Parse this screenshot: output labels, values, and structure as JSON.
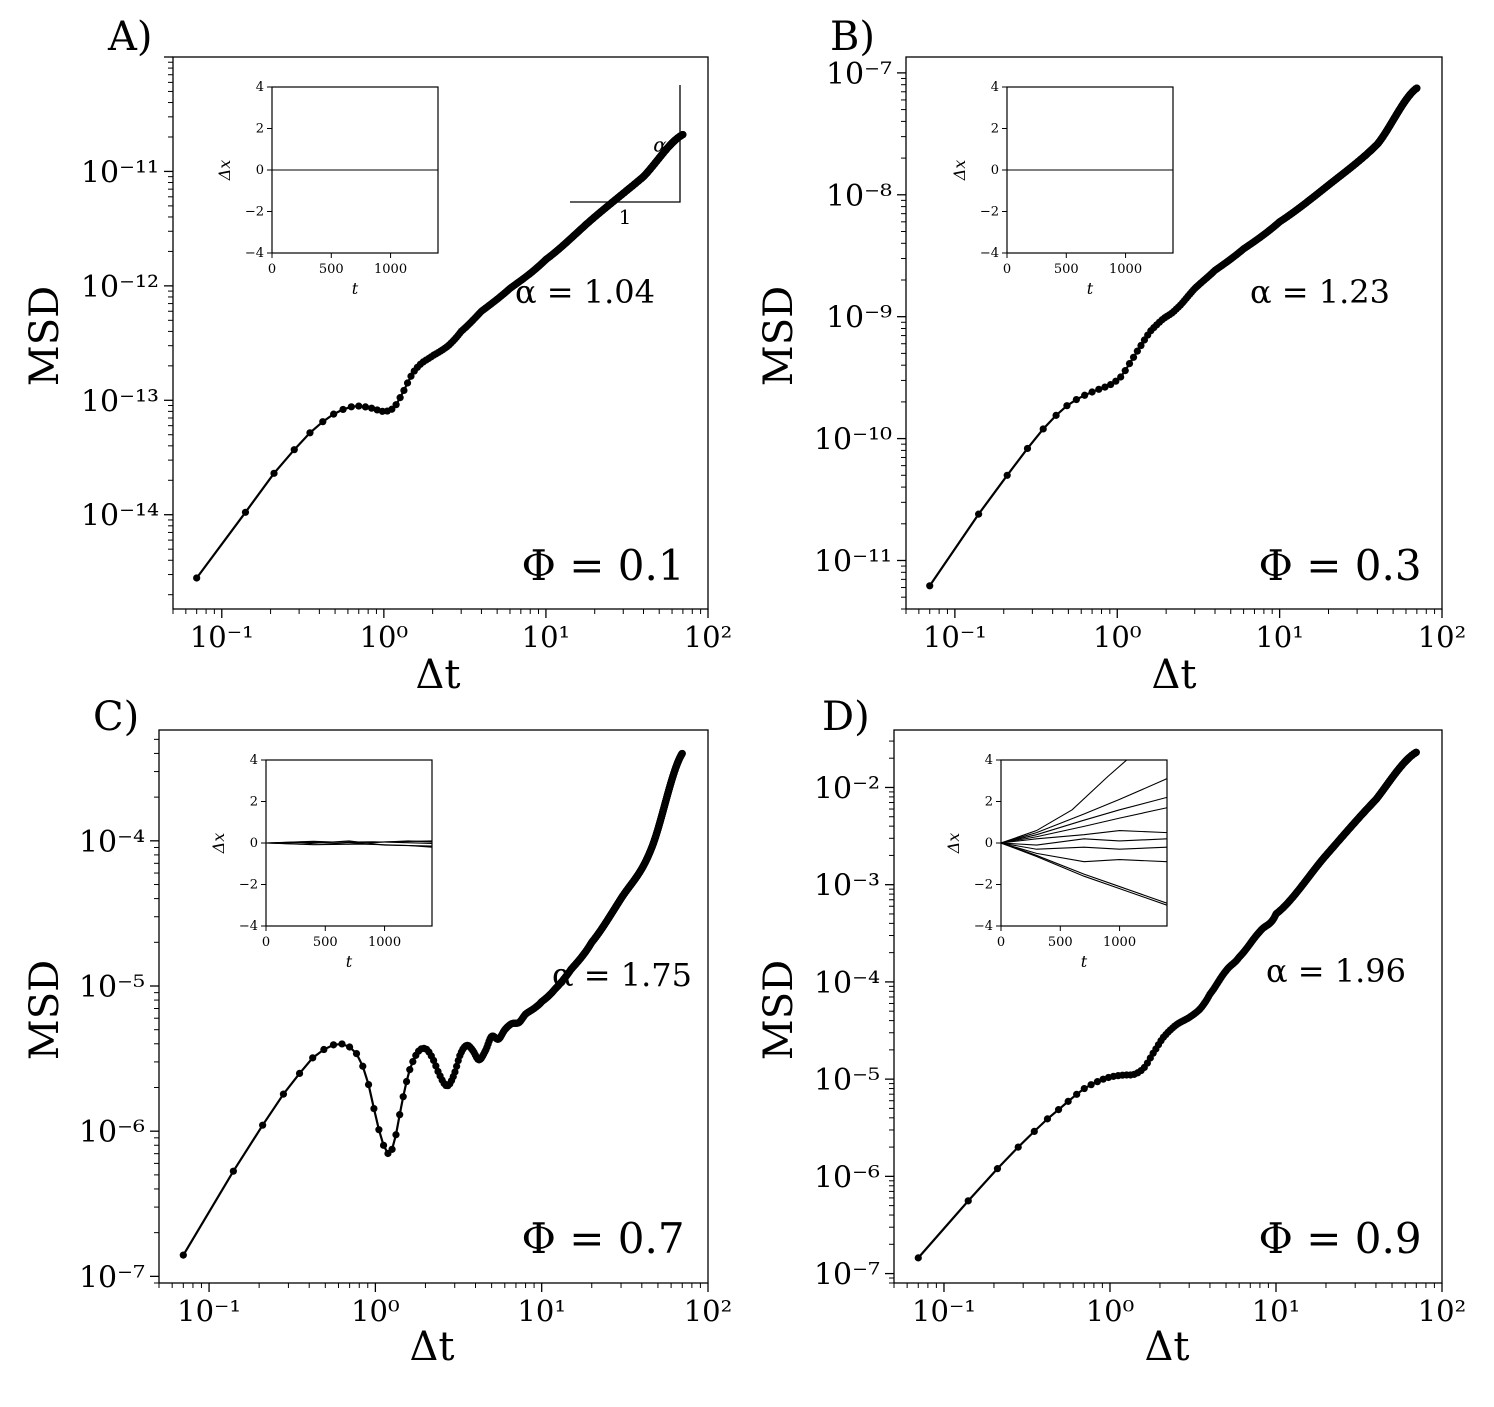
{
  "chart_data": [
    {
      "type": "line",
      "panel_label": "A)",
      "xlabel": "Δt",
      "ylabel": "MSD",
      "x_scale": "log",
      "y_scale": "log",
      "xlim": [
        0.05,
        100
      ],
      "ylim": [
        1.5e-15,
        1e-10
      ],
      "x_ticks": [
        {
          "v": 0.1,
          "l": "10⁻¹"
        },
        {
          "v": 1,
          "l": "10⁰"
        },
        {
          "v": 10,
          "l": "10¹"
        },
        {
          "v": 100,
          "l": "10²"
        }
      ],
      "y_ticks": [
        {
          "v": 1e-14,
          "l": "10⁻¹⁴"
        },
        {
          "v": 1e-13,
          "l": "10⁻¹³"
        },
        {
          "v": 1e-12,
          "l": "10⁻¹²"
        },
        {
          "v": 1e-11,
          "l": "10⁻¹¹"
        }
      ],
      "alpha_text": "α = 1.04",
      "phi_text": "Φ = 0.1",
      "slope_triangle": {
        "run_label": "1",
        "rise_label": "α"
      },
      "anchors": [
        [
          0.07,
          2.8e-15
        ],
        [
          0.14,
          1.05e-14
        ],
        [
          0.21,
          2.3e-14
        ],
        [
          0.28,
          3.7e-14
        ],
        [
          0.35,
          5.2e-14
        ],
        [
          0.42,
          6.5e-14
        ],
        [
          0.5,
          7.7e-14
        ],
        [
          0.6,
          8.6e-14
        ],
        [
          0.7,
          8.9e-14
        ],
        [
          0.85,
          8.5e-14
        ],
        [
          1.0,
          8e-14
        ],
        [
          1.15,
          8.6e-14
        ],
        [
          1.3,
          1.15e-13
        ],
        [
          1.5,
          1.7e-13
        ],
        [
          1.7,
          2.1e-13
        ],
        [
          2.0,
          2.45e-13
        ],
        [
          2.5,
          3e-13
        ],
        [
          3.0,
          4e-13
        ],
        [
          4.0,
          6e-13
        ],
        [
          6.0,
          9.5e-13
        ],
        [
          10,
          1.7e-12
        ],
        [
          20,
          4e-12
        ],
        [
          40,
          9e-12
        ],
        [
          70,
          2.1e-11
        ]
      ],
      "inset": {
        "xlabel": "t",
        "ylabel": "Δx",
        "xlim": [
          0,
          1400
        ],
        "ylim": [
          -4,
          4
        ],
        "x_ticks": [
          0,
          500,
          1000
        ],
        "y_ticks": [
          -4,
          -2,
          0,
          2,
          4
        ],
        "lines": [
          [
            [
              0,
              0
            ],
            [
              1400,
              0
            ]
          ]
        ]
      }
    },
    {
      "type": "line",
      "panel_label": "B)",
      "xlabel": "Δt",
      "ylabel": "MSD",
      "x_scale": "log",
      "y_scale": "log",
      "xlim": [
        0.05,
        100
      ],
      "ylim": [
        4e-12,
        1.35e-07
      ],
      "x_ticks": [
        {
          "v": 0.1,
          "l": "10⁻¹"
        },
        {
          "v": 1,
          "l": "10⁰"
        },
        {
          "v": 10,
          "l": "10¹"
        },
        {
          "v": 100,
          "l": "10²"
        }
      ],
      "y_ticks": [
        {
          "v": 1e-11,
          "l": "10⁻¹¹"
        },
        {
          "v": 1e-10,
          "l": "10⁻¹⁰"
        },
        {
          "v": 1e-09,
          "l": "10⁻⁹"
        },
        {
          "v": 1e-08,
          "l": "10⁻⁸"
        },
        {
          "v": 1e-07,
          "l": "10⁻⁷"
        }
      ],
      "alpha_text": "α = 1.23",
      "phi_text": "Φ = 0.3",
      "anchors": [
        [
          0.07,
          6.2e-12
        ],
        [
          0.14,
          2.4e-11
        ],
        [
          0.21,
          5e-11
        ],
        [
          0.28,
          8.3e-11
        ],
        [
          0.35,
          1.2e-10
        ],
        [
          0.42,
          1.55e-10
        ],
        [
          0.5,
          1.9e-10
        ],
        [
          0.6,
          2.2e-10
        ],
        [
          0.75,
          2.5e-10
        ],
        [
          0.9,
          2.75e-10
        ],
        [
          1.05,
          3.2e-10
        ],
        [
          1.2,
          4.2e-10
        ],
        [
          1.4,
          5.8e-10
        ],
        [
          1.6,
          7.6e-10
        ],
        [
          1.9,
          9.5e-10
        ],
        [
          2.3,
          1.15e-09
        ],
        [
          3.0,
          1.7e-09
        ],
        [
          4.0,
          2.4e-09
        ],
        [
          6.0,
          3.6e-09
        ],
        [
          10,
          6e-09
        ],
        [
          20,
          1.2e-08
        ],
        [
          40,
          2.6e-08
        ],
        [
          70,
          7.5e-08
        ]
      ],
      "inset": {
        "xlabel": "t",
        "ylabel": "Δx",
        "xlim": [
          0,
          1400
        ],
        "ylim": [
          -4,
          4
        ],
        "x_ticks": [
          0,
          500,
          1000
        ],
        "y_ticks": [
          -4,
          -2,
          0,
          2,
          4
        ],
        "lines": [
          [
            [
              0,
              0
            ],
            [
              1400,
              0
            ]
          ]
        ]
      }
    },
    {
      "type": "line",
      "panel_label": "C)",
      "xlabel": "Δt",
      "ylabel": "MSD",
      "x_scale": "log",
      "y_scale": "log",
      "xlim": [
        0.05,
        100
      ],
      "ylim": [
        9e-08,
        0.00058
      ],
      "x_ticks": [
        {
          "v": 0.1,
          "l": "10⁻¹"
        },
        {
          "v": 1,
          "l": "10⁰"
        },
        {
          "v": 10,
          "l": "10¹"
        },
        {
          "v": 100,
          "l": "10²"
        }
      ],
      "y_ticks": [
        {
          "v": 1e-07,
          "l": "10⁻⁷"
        },
        {
          "v": 1e-06,
          "l": "10⁻⁶"
        },
        {
          "v": 1e-05,
          "l": "10⁻⁵"
        },
        {
          "v": 0.0001,
          "l": "10⁻⁴"
        }
      ],
      "alpha_text": "α = 1.75",
      "phi_text": "Φ = 0.7",
      "anchors": [
        [
          0.07,
          1.4e-07
        ],
        [
          0.14,
          5.3e-07
        ],
        [
          0.21,
          1.1e-06
        ],
        [
          0.28,
          1.8e-06
        ],
        [
          0.35,
          2.5e-06
        ],
        [
          0.42,
          3.2e-06
        ],
        [
          0.5,
          3.7e-06
        ],
        [
          0.6,
          4e-06
        ],
        [
          0.7,
          3.8e-06
        ],
        [
          0.8,
          3.2e-06
        ],
        [
          0.9,
          2.2e-06
        ],
        [
          1.0,
          1.3e-06
        ],
        [
          1.1,
          8.5e-07
        ],
        [
          1.2,
          7e-07
        ],
        [
          1.3,
          8.5e-07
        ],
        [
          1.45,
          1.6e-06
        ],
        [
          1.6,
          2.6e-06
        ],
        [
          1.8,
          3.5e-06
        ],
        [
          2.0,
          3.7e-06
        ],
        [
          2.2,
          3.2e-06
        ],
        [
          2.45,
          2.4e-06
        ],
        [
          2.7,
          2.05e-06
        ],
        [
          2.95,
          2.4e-06
        ],
        [
          3.25,
          3.4e-06
        ],
        [
          3.55,
          3.9e-06
        ],
        [
          3.85,
          3.6e-06
        ],
        [
          4.2,
          3.1e-06
        ],
        [
          4.6,
          3.6e-06
        ],
        [
          5.0,
          4.5e-06
        ],
        [
          5.5,
          4.3e-06
        ],
        [
          6.0,
          5e-06
        ],
        [
          6.6,
          5.5e-06
        ],
        [
          7.3,
          5.6e-06
        ],
        [
          8.0,
          6.4e-06
        ],
        [
          9.0,
          7e-06
        ],
        [
          10,
          7.8e-06
        ],
        [
          12,
          9.5e-06
        ],
        [
          15,
          1.3e-05
        ],
        [
          20,
          2e-05
        ],
        [
          30,
          4e-05
        ],
        [
          45,
          8.5e-05
        ],
        [
          70,
          0.0004
        ]
      ],
      "inset": {
        "xlabel": "t",
        "ylabel": "Δx",
        "xlim": [
          0,
          1400
        ],
        "ylim": [
          -4,
          4
        ],
        "x_ticks": [
          0,
          500,
          1000
        ],
        "y_ticks": [
          -4,
          -2,
          0,
          2,
          4
        ],
        "lines": [
          [
            [
              0,
              0
            ],
            [
              300,
              0.05
            ],
            [
              700,
              -0.05
            ],
            [
              1000,
              0.05
            ],
            [
              1400,
              0.1
            ]
          ],
          [
            [
              0,
              0
            ],
            [
              300,
              -0.05
            ],
            [
              700,
              0.1
            ],
            [
              1000,
              -0.1
            ],
            [
              1400,
              -0.15
            ]
          ],
          [
            [
              0,
              0
            ],
            [
              400,
              0.08
            ],
            [
              800,
              0.0
            ],
            [
              1200,
              0.1
            ],
            [
              1400,
              0.05
            ]
          ],
          [
            [
              0,
              0
            ],
            [
              400,
              -0.08
            ],
            [
              800,
              -0.05
            ],
            [
              1200,
              -0.12
            ],
            [
              1400,
              -0.2
            ]
          ],
          [
            [
              0,
              0
            ],
            [
              500,
              0.03
            ],
            [
              900,
              0.06
            ],
            [
              1400,
              -0.02
            ]
          ]
        ]
      }
    },
    {
      "type": "line",
      "panel_label": "D)",
      "xlabel": "Δt",
      "ylabel": "MSD",
      "x_scale": "log",
      "y_scale": "log",
      "xlim": [
        0.05,
        100
      ],
      "ylim": [
        8e-08,
        0.039
      ],
      "x_ticks": [
        {
          "v": 0.1,
          "l": "10⁻¹"
        },
        {
          "v": 1,
          "l": "10⁰"
        },
        {
          "v": 10,
          "l": "10¹"
        },
        {
          "v": 100,
          "l": "10²"
        }
      ],
      "y_ticks": [
        {
          "v": 1e-07,
          "l": "10⁻⁷"
        },
        {
          "v": 1e-06,
          "l": "10⁻⁶"
        },
        {
          "v": 1e-05,
          "l": "10⁻⁵"
        },
        {
          "v": 0.0001,
          "l": "10⁻⁴"
        },
        {
          "v": 0.001,
          "l": "10⁻³"
        },
        {
          "v": 0.01,
          "l": "10⁻²"
        }
      ],
      "alpha_text": "α = 1.96",
      "phi_text": "Φ = 0.9",
      "anchors": [
        [
          0.07,
          1.45e-07
        ],
        [
          0.14,
          5.6e-07
        ],
        [
          0.21,
          1.2e-06
        ],
        [
          0.28,
          2e-06
        ],
        [
          0.35,
          2.9e-06
        ],
        [
          0.42,
          3.9e-06
        ],
        [
          0.5,
          5e-06
        ],
        [
          0.6,
          6.5e-06
        ],
        [
          0.7,
          8e-06
        ],
        [
          0.85,
          9.5e-06
        ],
        [
          1.0,
          1.05e-05
        ],
        [
          1.2,
          1.1e-05
        ],
        [
          1.4,
          1.12e-05
        ],
        [
          1.6,
          1.3e-05
        ],
        [
          1.8,
          1.8e-05
        ],
        [
          2.1,
          2.7e-05
        ],
        [
          2.5,
          3.6e-05
        ],
        [
          3.0,
          4.3e-05
        ],
        [
          3.5,
          5.3e-05
        ],
        [
          4.0,
          7.5e-05
        ],
        [
          5.0,
          0.00013
        ],
        [
          6.0,
          0.00018
        ],
        [
          8.0,
          0.00033
        ],
        [
          10,
          0.0005
        ],
        [
          20,
          0.002
        ],
        [
          40,
          0.0075
        ],
        [
          70,
          0.023
        ]
      ],
      "inset": {
        "xlabel": "t",
        "ylabel": "Δx",
        "xlim": [
          0,
          1400
        ],
        "ylim": [
          -4,
          4
        ],
        "x_ticks": [
          0,
          500,
          1000
        ],
        "y_ticks": [
          -4,
          -2,
          0,
          2,
          4
        ],
        "lines": [
          [
            [
              0,
              0
            ],
            [
              300,
              0.6
            ],
            [
              600,
              1.6
            ],
            [
              900,
              3.2
            ],
            [
              1100,
              4.2
            ]
          ],
          [
            [
              0,
              0
            ],
            [
              300,
              0.5
            ],
            [
              700,
              1.4
            ],
            [
              1000,
              2.1
            ],
            [
              1400,
              3.1
            ]
          ],
          [
            [
              0,
              0
            ],
            [
              300,
              0.4
            ],
            [
              700,
              1.1
            ],
            [
              1000,
              1.6
            ],
            [
              1400,
              2.2
            ]
          ],
          [
            [
              0,
              0
            ],
            [
              300,
              0.3
            ],
            [
              700,
              0.8
            ],
            [
              1000,
              1.2
            ],
            [
              1400,
              1.7
            ]
          ],
          [
            [
              0,
              0
            ],
            [
              300,
              0.2
            ],
            [
              700,
              0.4
            ],
            [
              1000,
              0.6
            ],
            [
              1400,
              0.5
            ]
          ],
          [
            [
              0,
              0
            ],
            [
              300,
              -0.1
            ],
            [
              700,
              0.2
            ],
            [
              1000,
              0.1
            ],
            [
              1400,
              0.2
            ]
          ],
          [
            [
              0,
              0
            ],
            [
              300,
              -0.3
            ],
            [
              700,
              -0.2
            ],
            [
              1000,
              -0.3
            ],
            [
              1400,
              -0.2
            ]
          ],
          [
            [
              0,
              0
            ],
            [
              300,
              -0.5
            ],
            [
              700,
              -0.9
            ],
            [
              1000,
              -0.8
            ],
            [
              1400,
              -0.9
            ]
          ],
          [
            [
              0,
              0
            ],
            [
              300,
              -0.6
            ],
            [
              700,
              -1.5
            ],
            [
              1000,
              -2.1
            ],
            [
              1400,
              -2.9
            ]
          ],
          [
            [
              0,
              0
            ],
            [
              300,
              -0.65
            ],
            [
              700,
              -1.6
            ],
            [
              1000,
              -2.2
            ],
            [
              1400,
              -3.0
            ]
          ]
        ]
      }
    }
  ]
}
